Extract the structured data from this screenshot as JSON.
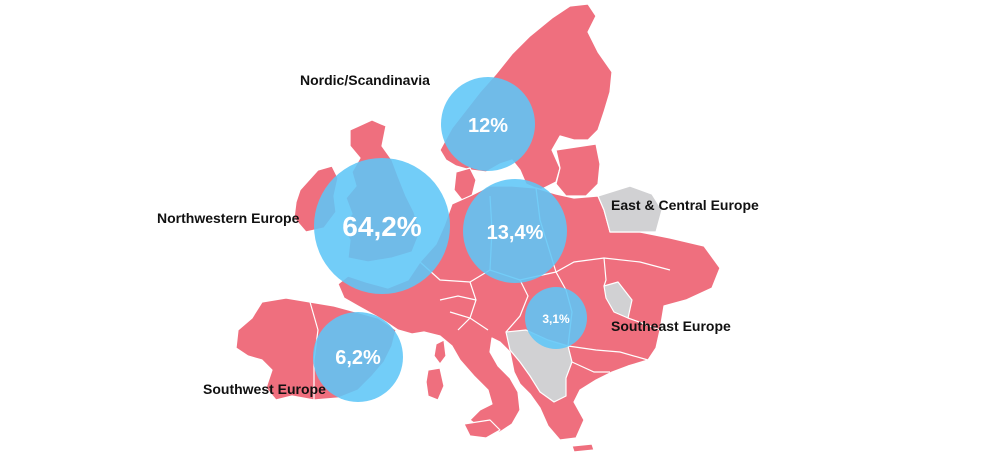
{
  "map": {
    "colors": {
      "country_fill": "#ef6f7e",
      "country_border": "#ffffff",
      "excluded_fill": "#d1d1d3",
      "bubble_fill": "#5fc6f7"
    },
    "regions": [
      {
        "id": "nordic",
        "name": "Nordic/Scandinavia",
        "value": "12%"
      },
      {
        "id": "northwestern",
        "name": "Northwestern Europe",
        "value": "64,2%"
      },
      {
        "id": "east-central",
        "name": "East & Central Europe",
        "value": "13,4%"
      },
      {
        "id": "southeast",
        "name": "Southeast Europe",
        "value": "3,1%"
      },
      {
        "id": "southwest",
        "name": "Southwest Europe",
        "value": "6,2%"
      }
    ]
  }
}
